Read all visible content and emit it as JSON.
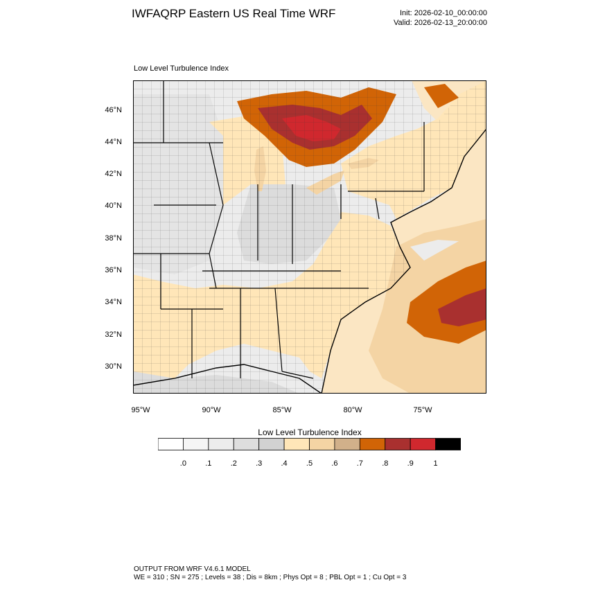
{
  "header": {
    "title": "IWFAQRP Eastern US Real Time WRF",
    "init": "Init: 2026-02-10_00:00:00",
    "valid": "Valid: 2026-02-13_20:00:00"
  },
  "map": {
    "subtitle": "Low Level Turbulence Index",
    "lat_labels": [
      "46°N",
      "44°N",
      "42°N",
      "40°N",
      "38°N",
      "36°N",
      "34°N",
      "32°N",
      "30°N"
    ],
    "lon_labels": [
      "95°W",
      "90°W",
      "85°W",
      "80°W",
      "75°W"
    ],
    "colors": {
      "ocean": "#fbe6c3",
      "land_light": "#ececec",
      "land_mid": "#dcdcdc",
      "low": "#ffe6b8",
      "mid": "#f4d4a4",
      "tan": "#d1b08a",
      "orange": "#d16406",
      "darkred": "#a9302f",
      "red": "#d0282e"
    }
  },
  "colorbar": {
    "title": "Low Level Turbulence Index",
    "colors": [
      "#ffffff",
      "#f5f5f5",
      "#ececec",
      "#dedede",
      "#d2d2d2",
      "#ffe6b8",
      "#f4d4a4",
      "#d1b08a",
      "#d16406",
      "#a9302f",
      "#d0282e",
      "#000000"
    ],
    "labels": [
      ".0",
      ".1",
      ".2",
      ".3",
      ".4",
      ".5",
      ".6",
      ".7",
      ".8",
      ".9",
      "1"
    ]
  },
  "footer": {
    "line1": "OUTPUT FROM WRF V4.6.1 MODEL",
    "line2": "WE = 310 ; SN = 275 ; Levels = 38 ; Dis = 8km ; Phys Opt = 8 ; PBL Opt = 1 ; Cu Opt = 3"
  }
}
